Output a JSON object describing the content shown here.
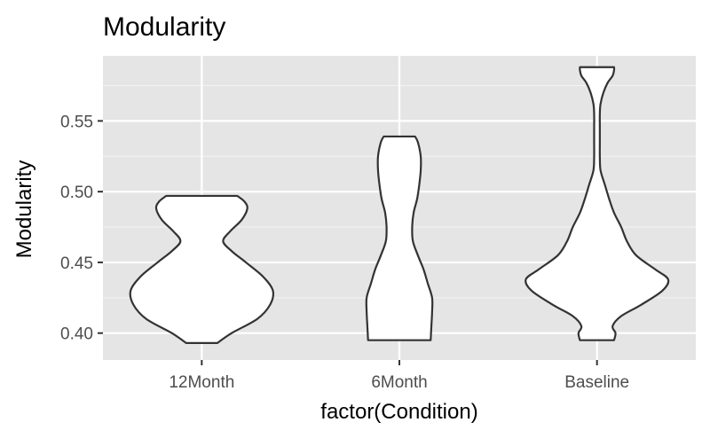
{
  "chart_data": {
    "type": "violin",
    "title": "Modularity",
    "xlabel": "factor(Condition)",
    "ylabel": "Modularity",
    "categories": [
      "12Month",
      "6Month",
      "Baseline"
    ],
    "ylim": [
      0.381,
      0.596
    ],
    "yticks": [
      0.4,
      0.45,
      0.5,
      0.55
    ],
    "ytick_labels": [
      "0.40",
      "0.45",
      "0.50",
      "0.55"
    ],
    "grid": true,
    "legend": "none",
    "violins": [
      {
        "category": "12Month",
        "ymin": 0.393,
        "ymax": 0.497,
        "profile": [
          [
            0.393,
            0.22
          ],
          [
            0.4,
            0.42
          ],
          [
            0.41,
            0.78
          ],
          [
            0.42,
            0.96
          ],
          [
            0.43,
            1.0
          ],
          [
            0.44,
            0.86
          ],
          [
            0.45,
            0.62
          ],
          [
            0.458,
            0.42
          ],
          [
            0.465,
            0.3
          ],
          [
            0.472,
            0.4
          ],
          [
            0.48,
            0.56
          ],
          [
            0.488,
            0.64
          ],
          [
            0.493,
            0.6
          ],
          [
            0.497,
            0.5
          ]
        ]
      },
      {
        "category": "6Month",
        "ymin": 0.395,
        "ymax": 0.539,
        "profile": [
          [
            0.395,
            0.44
          ],
          [
            0.405,
            0.45
          ],
          [
            0.415,
            0.46
          ],
          [
            0.425,
            0.46
          ],
          [
            0.435,
            0.4
          ],
          [
            0.445,
            0.34
          ],
          [
            0.455,
            0.26
          ],
          [
            0.465,
            0.19
          ],
          [
            0.475,
            0.18
          ],
          [
            0.485,
            0.2
          ],
          [
            0.495,
            0.25
          ],
          [
            0.505,
            0.28
          ],
          [
            0.515,
            0.3
          ],
          [
            0.525,
            0.3
          ],
          [
            0.535,
            0.26
          ],
          [
            0.539,
            0.22
          ]
        ]
      },
      {
        "category": "Baseline",
        "ymin": 0.395,
        "ymax": 0.588,
        "profile": [
          [
            0.395,
            0.24
          ],
          [
            0.4,
            0.26
          ],
          [
            0.405,
            0.22
          ],
          [
            0.412,
            0.34
          ],
          [
            0.42,
            0.62
          ],
          [
            0.43,
            0.92
          ],
          [
            0.438,
            1.0
          ],
          [
            0.445,
            0.82
          ],
          [
            0.455,
            0.55
          ],
          [
            0.465,
            0.42
          ],
          [
            0.475,
            0.34
          ],
          [
            0.485,
            0.24
          ],
          [
            0.495,
            0.17
          ],
          [
            0.505,
            0.11
          ],
          [
            0.515,
            0.05
          ],
          [
            0.525,
            0.04
          ],
          [
            0.535,
            0.04
          ],
          [
            0.545,
            0.04
          ],
          [
            0.555,
            0.04
          ],
          [
            0.562,
            0.05
          ],
          [
            0.57,
            0.09
          ],
          [
            0.577,
            0.15
          ],
          [
            0.582,
            0.22
          ],
          [
            0.586,
            0.24
          ],
          [
            0.588,
            0.24
          ]
        ]
      }
    ]
  }
}
